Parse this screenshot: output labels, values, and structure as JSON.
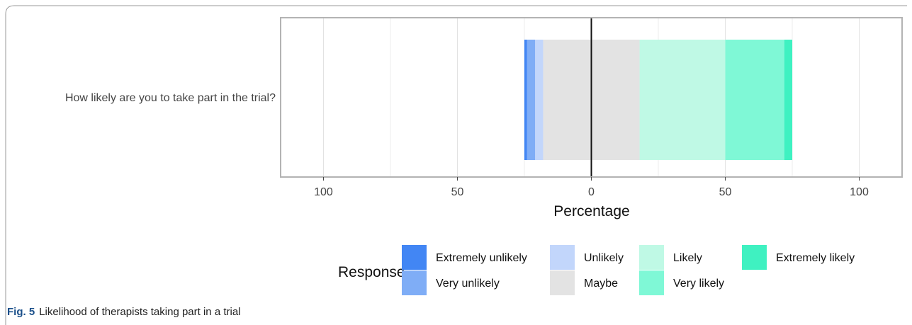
{
  "chart_data": {
    "type": "bar",
    "orientation": "horizontal-diverging-stacked",
    "categories": [
      "How likely are you to take part in the trial?"
    ],
    "series": [
      {
        "name": "Extremely unlikely",
        "values": [
          1
        ],
        "side": "negative",
        "color": "#4286f4"
      },
      {
        "name": "Very unlikely",
        "values": [
          3
        ],
        "side": "negative",
        "color": "#7fadf6"
      },
      {
        "name": "Unlikely",
        "values": [
          3
        ],
        "side": "negative",
        "color": "#c2d6fb"
      },
      {
        "name": "Maybe",
        "values": [
          36
        ],
        "side": "center",
        "color": "#e3e3e3"
      },
      {
        "name": "Likely",
        "values": [
          32
        ],
        "side": "positive",
        "color": "#bff9e5"
      },
      {
        "name": "Very likely",
        "values": [
          22
        ],
        "side": "positive",
        "color": "#7ff8d6"
      },
      {
        "name": "Extremely likely",
        "values": [
          3
        ],
        "side": "positive",
        "color": "#3ff1c1"
      }
    ],
    "x_ticks": [
      "100",
      "50",
      "0",
      "50",
      "100"
    ],
    "x_tick_values": [
      -100,
      -50,
      0,
      50,
      100
    ],
    "xlim": [
      -116,
      116
    ],
    "xlabel": "Percentage",
    "legend_title": "Response",
    "legend_position": "bottom",
    "grid": true
  },
  "caption": {
    "label": "Fig. 5",
    "text": "Likelihood of therapists taking part in a trial"
  }
}
